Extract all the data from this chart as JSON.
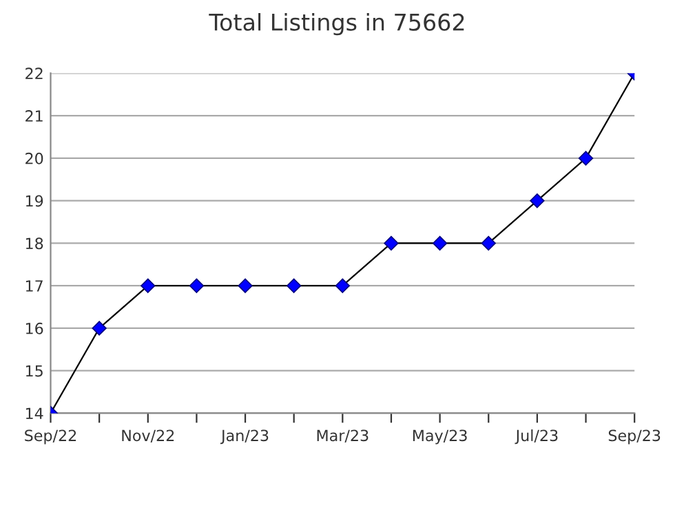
{
  "chart_data": {
    "type": "line",
    "title": "Total Listings in 75662",
    "categories": [
      "Sep/22",
      null,
      "Nov/22",
      null,
      "Jan/23",
      null,
      "Mar/23",
      null,
      "May/23",
      null,
      "Jul/23",
      null,
      "Sep/23"
    ],
    "series": [
      {
        "color": "#0000ff",
        "values": [
          14,
          16,
          17,
          17,
          17,
          17,
          17,
          18,
          18,
          18,
          19,
          20,
          22
        ]
      }
    ],
    "ylim": [
      14,
      22
    ],
    "yticks": [
      14,
      15,
      16,
      17,
      18,
      19,
      20,
      21,
      22
    ],
    "grid": "y",
    "marker": "diamond",
    "line_style": "solid",
    "legend": false
  }
}
